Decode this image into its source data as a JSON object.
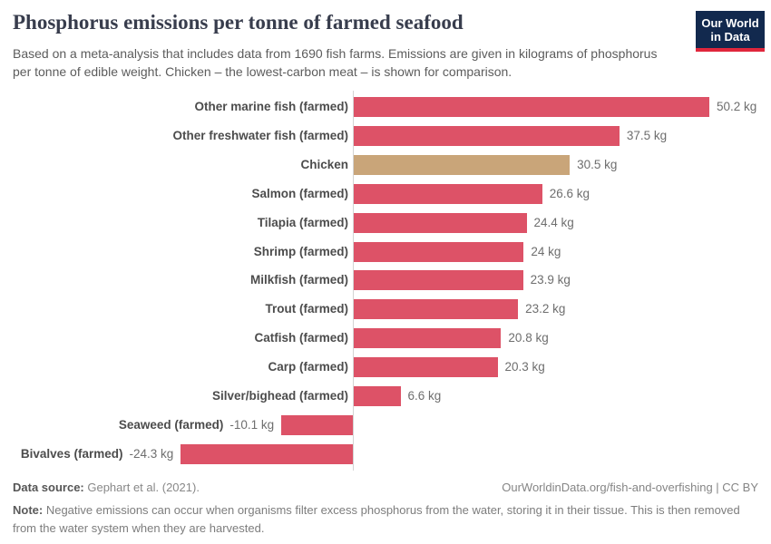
{
  "header": {
    "title": "Phosphorus emissions per tonne of farmed seafood",
    "subtitle": "Based on a meta-analysis that includes data from 1690 fish farms. Emissions are given in kilograms of phosphorus per tonne of edible weight. Chicken – the lowest-carbon meat – is shown for comparison.",
    "logo": {
      "line1": "Our World",
      "line2": "in Data",
      "bg_color": "#12294e",
      "accent_color": "#e0263c"
    }
  },
  "chart_data": {
    "type": "bar",
    "orientation": "horizontal",
    "title": "Phosphorus emissions per tonne of farmed seafood",
    "xlabel": "",
    "ylabel": "",
    "unit": "kg",
    "xlim": [
      -24.3,
      50.2
    ],
    "grid": false,
    "zero_line": true,
    "legend": "none",
    "bar_color": "#dd5267",
    "highlight_color": "#c9a579",
    "bars": [
      {
        "label": "Other marine fish (farmed)",
        "value": 50.2,
        "value_label": "50.2 kg"
      },
      {
        "label": "Other freshwater fish (farmed)",
        "value": 37.5,
        "value_label": "37.5 kg"
      },
      {
        "label": "Chicken",
        "value": 30.5,
        "value_label": "30.5 kg",
        "highlight": true
      },
      {
        "label": "Salmon (farmed)",
        "value": 26.6,
        "value_label": "26.6 kg"
      },
      {
        "label": "Tilapia (farmed)",
        "value": 24.4,
        "value_label": "24.4 kg"
      },
      {
        "label": "Shrimp (farmed)",
        "value": 24,
        "value_label": "24 kg"
      },
      {
        "label": "Milkfish (farmed)",
        "value": 23.9,
        "value_label": "23.9 kg"
      },
      {
        "label": "Trout (farmed)",
        "value": 23.2,
        "value_label": "23.2 kg"
      },
      {
        "label": "Catfish (farmed)",
        "value": 20.8,
        "value_label": "20.8 kg"
      },
      {
        "label": "Carp (farmed)",
        "value": 20.3,
        "value_label": "20.3 kg"
      },
      {
        "label": "Silver/bighead (farmed)",
        "value": 6.6,
        "value_label": "6.6 kg"
      },
      {
        "label": "Seaweed (farmed)",
        "value": -10.1,
        "value_label": "-10.1 kg"
      },
      {
        "label": "Bivalves (farmed)",
        "value": -24.3,
        "value_label": "-24.3 kg"
      }
    ]
  },
  "footer": {
    "source_label": "Data source:",
    "source_text": " Gephart et al. (2021).",
    "link_text": "OurWorldinData.org/fish-and-overfishing | CC BY",
    "note_label": "Note:",
    "note_text": " Negative emissions can occur when organisms filter excess phosphorus from the water, storing it in their tissue. This is then removed from the water system when they are harvested."
  }
}
